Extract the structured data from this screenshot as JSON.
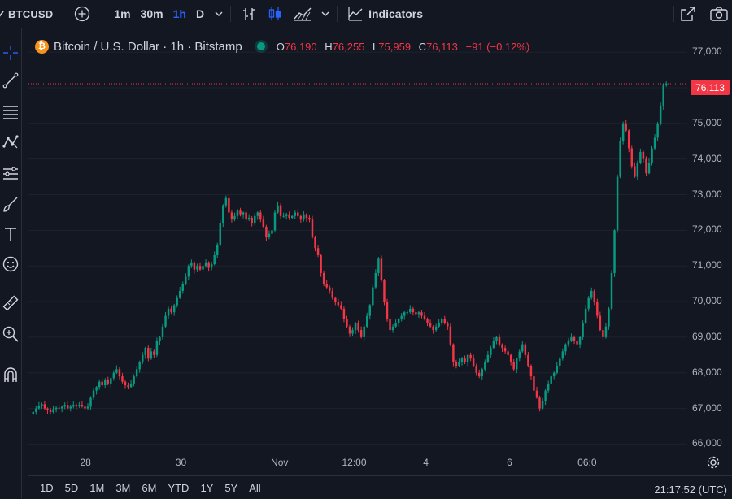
{
  "toolbar": {
    "symbol": "BTCUSD",
    "intervals": [
      "1m",
      "30m",
      "1h",
      "D"
    ],
    "active_interval": "1h",
    "indicators_label": "Indicators"
  },
  "legend": {
    "title": "Bitcoin / U.S. Dollar · 1h · Bitstamp",
    "o_label": "O",
    "o": "76,190",
    "h_label": "H",
    "h": "76,255",
    "l_label": "L",
    "l": "75,959",
    "c_label": "C",
    "c": "76,113",
    "change": "−91 (−0.12%)"
  },
  "last_price": "76,113",
  "colors": {
    "up": "#089981",
    "down": "#f23645",
    "accent": "#2962ff",
    "bg": "#131722"
  },
  "bottombar": {
    "ranges": [
      "1D",
      "5D",
      "1M",
      "3M",
      "6M",
      "YTD",
      "1Y",
      "5Y",
      "All"
    ],
    "clock": "21:17:52 (UTC)"
  },
  "chart_data": {
    "type": "candlestick",
    "y_tick_labels": [
      "77,000",
      "76,000",
      "75,000",
      "74,000",
      "73,000",
      "72,000",
      "71,000",
      "70,000",
      "69,000",
      "68,000",
      "67,000",
      "66,000"
    ],
    "y_ticks": [
      77000,
      76000,
      75000,
      74000,
      73000,
      72000,
      71000,
      70000,
      69000,
      68000,
      67000,
      66000
    ],
    "ylim": [
      65850,
      77550
    ],
    "x_tick_labels": [
      "28",
      "30",
      "Nov",
      "12:00",
      "4",
      "6",
      "06:0"
    ],
    "closes": [
      66900,
      67000,
      67080,
      67120,
      67000,
      66950,
      66900,
      66980,
      67020,
      67000,
      67050,
      67100,
      67000,
      67050,
      67100,
      67080,
      67100,
      67050,
      67000,
      67050,
      67300,
      67500,
      67600,
      67750,
      67650,
      67800,
      67700,
      67850,
      68000,
      68100,
      67900,
      67750,
      67650,
      67600,
      67700,
      67900,
      68100,
      68300,
      68500,
      68700,
      68400,
      68600,
      68500,
      68900,
      69000,
      69300,
      69600,
      69800,
      69700,
      69900,
      70100,
      70300,
      70500,
      70700,
      71000,
      71100,
      70900,
      71000,
      70900,
      71000,
      71100,
      70950,
      71050,
      71300,
      71600,
      72200,
      72700,
      72900,
      72500,
      72300,
      72400,
      72550,
      72450,
      72500,
      72300,
      72350,
      72200,
      72400,
      72500,
      72300,
      72100,
      71800,
      71900,
      72000,
      72500,
      72700,
      72400,
      72400,
      72450,
      72350,
      72400,
      72500,
      72400,
      72300,
      72450,
      72350,
      72300,
      71800,
      71500,
      71300,
      70800,
      70500,
      70400,
      70300,
      70100,
      70000,
      69900,
      69800,
      69500,
      69300,
      69100,
      69200,
      69400,
      69200,
      69000,
      69300,
      69600,
      69900,
      70400,
      70800,
      71200,
      70600,
      70000,
      69500,
      69200,
      69300,
      69400,
      69500,
      69600,
      69700,
      69700,
      69800,
      69700,
      69650,
      69700,
      69600,
      69500,
      69400,
      69300,
      69200,
      69300,
      69400,
      69500,
      69400,
      69300,
      68800,
      68300,
      68200,
      68300,
      68400,
      68300,
      68500,
      68400,
      68200,
      68000,
      67900,
      68100,
      68300,
      68500,
      68700,
      68900,
      69000,
      68800,
      68700,
      68600,
      68500,
      68300,
      68100,
      68400,
      68600,
      68800,
      68500,
      68200,
      67900,
      67500,
      67300,
      67000,
      67200,
      67500,
      67700,
      67900,
      68000,
      68200,
      68400,
      68600,
      68800,
      68900,
      69000,
      68900,
      68800,
      69000,
      69400,
      69800,
      70100,
      70300,
      70000,
      69600,
      69200,
      69000,
      69300,
      69800,
      70800,
      72000,
      73500,
      74500,
      75000,
      74800,
      74300,
      73800,
      73500,
      73900,
      74200,
      74000,
      73600,
      73900,
      74300,
      74600,
      75000,
      75500,
      76100,
      76113
    ]
  }
}
